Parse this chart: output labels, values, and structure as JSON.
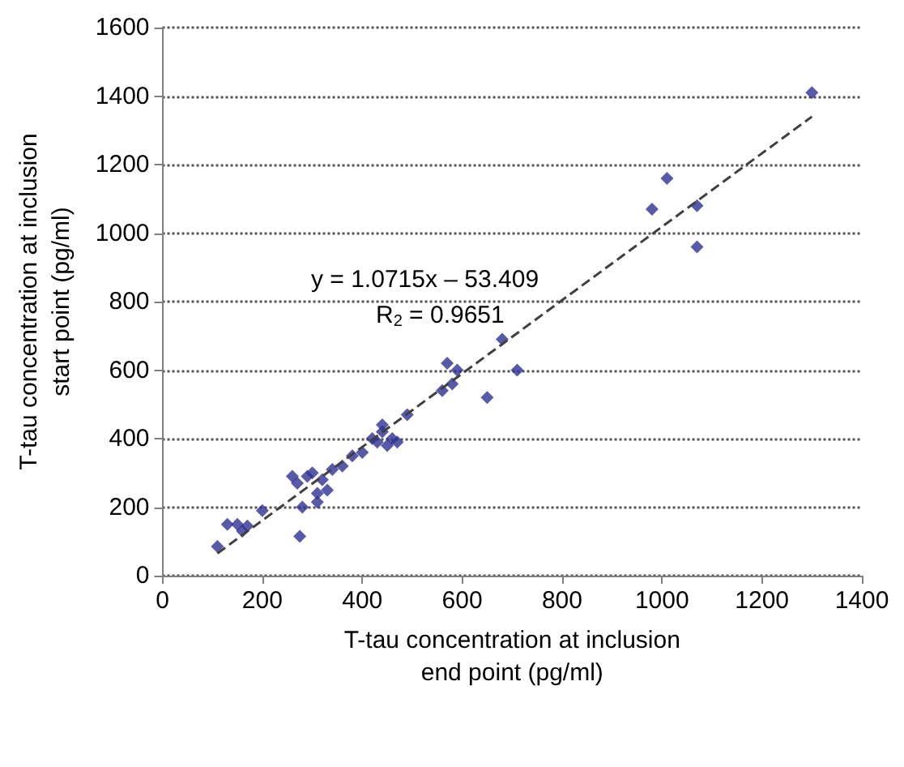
{
  "chart_data": {
    "type": "scatter",
    "xlabel": "T-tau concentration at inclusion\nend point (pg/ml)",
    "ylabel": "T-tau concentration at inclusion\nstart point (pg/ml)",
    "annotations": [
      "y = 1.0715x – 53.409",
      "R$_{2}$ = 0.9651"
    ],
    "xlim": [
      0,
      1400
    ],
    "xticks": [
      0,
      200,
      400,
      600,
      800,
      1000,
      1200,
      1400
    ],
    "ylim": [
      0,
      1600
    ],
    "yticks": [
      0,
      200,
      400,
      600,
      800,
      1000,
      1200,
      1400,
      1600
    ],
    "grid": "y",
    "marker": "diamond",
    "series": [
      {
        "color": "#2e3192",
        "x": [
          110,
          130,
          150,
          160,
          170,
          200,
          260,
          270,
          275,
          280,
          290,
          300,
          310,
          310,
          320,
          330,
          340,
          360,
          380,
          400,
          420,
          430,
          440,
          440,
          450,
          460,
          470,
          490,
          570,
          560,
          580,
          590,
          650,
          680,
          710,
          980,
          1010,
          1070,
          1070,
          1300
        ],
        "values": [
          85,
          150,
          150,
          130,
          145,
          190,
          290,
          270,
          115,
          200,
          290,
          300,
          240,
          215,
          280,
          250,
          310,
          320,
          350,
          360,
          400,
          390,
          420,
          440,
          380,
          400,
          390,
          470,
          620,
          540,
          560,
          600,
          520,
          690,
          600,
          1070,
          1160,
          1080,
          960,
          1410
        ]
      },
      {
        "type": "line",
        "color": "#404040",
        "line_style": "dashed",
        "marker": "none",
        "x": [
          110,
          1300
        ],
        "values": [
          65,
          1340
        ]
      }
    ]
  }
}
